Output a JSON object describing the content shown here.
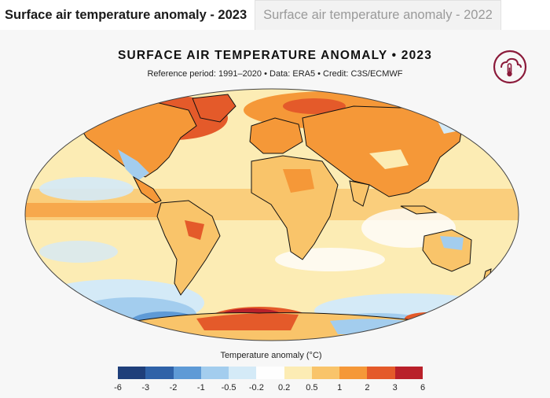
{
  "tabs": [
    {
      "label": "Surface air temperature anomaly - 2023",
      "active": true
    },
    {
      "label": "Surface air temperature anomaly - 2022",
      "active": false
    }
  ],
  "map": {
    "title": "SURFACE AIR TEMPERATURE ANOMALY • 2023",
    "subtitle": "Reference period: 1991–2020 • Data: ERA5 • Credit: C3S/ECMWF",
    "logo_icon": "thermometer-cloud-icon"
  },
  "legend": {
    "title": "Temperature anomaly (°C)",
    "colors": [
      "#1f3f7a",
      "#2f62a8",
      "#5e9ad6",
      "#a3cdee",
      "#d4eaf7",
      "#fefefe",
      "#fcecb4",
      "#f9c46a",
      "#f59838",
      "#e45a2a",
      "#b9202a"
    ],
    "ticks": [
      "-6",
      "-3",
      "-2",
      "-1",
      "-0.5",
      "-0.2",
      "0.2",
      "0.5",
      "1",
      "2",
      "3",
      "6"
    ]
  }
}
